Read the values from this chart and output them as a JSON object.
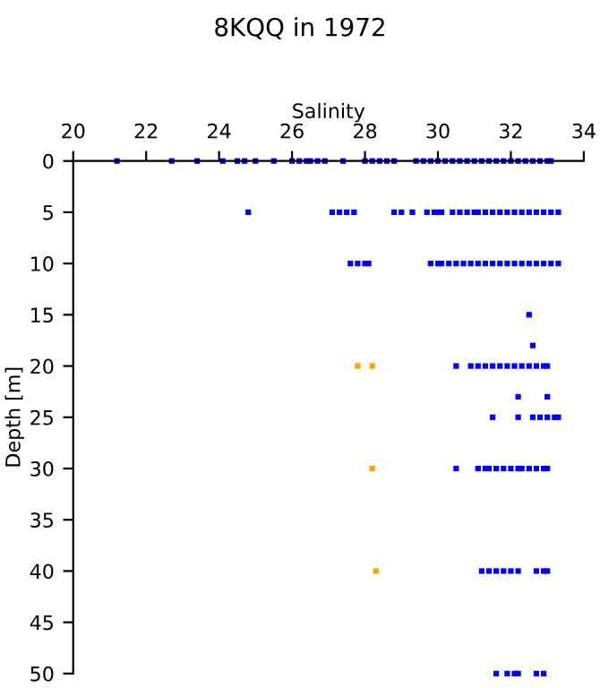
{
  "chart_data": {
    "type": "scatter",
    "title": "8KQQ in 1972",
    "xlabel": "Salinity",
    "ylabel": "Depth [m]",
    "xlim": [
      20,
      34
    ],
    "xticks": [
      20,
      22,
      24,
      26,
      28,
      30,
      32,
      34
    ],
    "ylim": [
      50,
      0
    ],
    "yticks": [
      0,
      5,
      10,
      15,
      20,
      25,
      30,
      35,
      40,
      45,
      50
    ],
    "grid": false,
    "marker": "square",
    "series": [
      {
        "color": "#0000ff",
        "x": [
          21.2,
          22.7,
          23.4,
          24.1,
          24.5,
          24.7,
          25.0,
          25.5,
          26.0,
          26.2,
          26.4,
          26.5,
          26.7,
          26.9,
          27.4,
          28.0,
          28.2,
          28.4,
          28.6,
          28.8,
          29.4,
          29.6,
          29.8,
          30.0,
          30.2,
          30.4,
          30.6,
          30.8,
          31.0,
          31.2,
          31.4,
          31.6,
          31.8,
          32.0,
          32.2,
          32.4,
          32.6,
          32.8,
          33.0,
          33.1
        ],
        "values": [
          0,
          0,
          0,
          0,
          0,
          0,
          0,
          0,
          0,
          0,
          0,
          0,
          0,
          0,
          0,
          0,
          0,
          0,
          0,
          0,
          0,
          0,
          0,
          0,
          0,
          0,
          0,
          0,
          0,
          0,
          0,
          0,
          0,
          0,
          0,
          0,
          0,
          0,
          0,
          0
        ]
      },
      {
        "color": "#0000ff",
        "x": [
          24.8,
          27.1,
          27.3,
          27.5,
          27.7,
          28.8,
          29.0,
          29.3,
          29.7,
          29.9,
          30.0,
          30.1,
          30.4,
          30.6,
          30.8,
          31.0,
          31.1,
          31.3,
          31.5,
          31.7,
          31.9,
          32.1,
          32.3,
          32.5,
          32.7,
          32.9,
          33.1,
          33.3
        ],
        "values": [
          5,
          5,
          5,
          5,
          5,
          5,
          5,
          5,
          5,
          5,
          5,
          5,
          5,
          5,
          5,
          5,
          5,
          5,
          5,
          5,
          5,
          5,
          5,
          5,
          5,
          5,
          5,
          5
        ]
      },
      {
        "color": "#0000ff",
        "x": [
          27.6,
          27.8,
          28.0,
          28.1,
          29.8,
          30.0,
          30.1,
          30.3,
          30.5,
          30.7,
          30.9,
          31.1,
          31.3,
          31.5,
          31.7,
          31.9,
          32.1,
          32.3,
          32.5,
          32.7,
          32.9,
          33.1,
          33.3
        ],
        "values": [
          10,
          10,
          10,
          10,
          10,
          10,
          10,
          10,
          10,
          10,
          10,
          10,
          10,
          10,
          10,
          10,
          10,
          10,
          10,
          10,
          10,
          10,
          10
        ]
      },
      {
        "color": "#0000ff",
        "x": [
          32.5,
          32.6,
          32.2,
          33.0
        ],
        "values": [
          15,
          18,
          23,
          23
        ]
      },
      {
        "color": "#0000ff",
        "x": [
          30.5,
          30.9,
          31.1,
          31.3,
          31.5,
          31.7,
          31.9,
          32.1,
          32.3,
          32.5,
          32.7,
          32.9,
          33.0
        ],
        "values": [
          20,
          20,
          20,
          20,
          20,
          20,
          20,
          20,
          20,
          20,
          20,
          20,
          20
        ]
      },
      {
        "color": "#0000ff",
        "x": [
          31.5,
          32.2,
          32.6,
          32.8,
          33.0,
          33.2,
          33.3
        ],
        "values": [
          25,
          25,
          25,
          25,
          25,
          25,
          25
        ]
      },
      {
        "color": "#0000ff",
        "x": [
          30.5,
          31.1,
          31.3,
          31.4,
          31.6,
          31.8,
          32.0,
          32.2,
          32.3,
          32.5,
          32.7,
          32.9,
          33.0
        ],
        "values": [
          30,
          30,
          30,
          30,
          30,
          30,
          30,
          30,
          30,
          30,
          30,
          30,
          30
        ]
      },
      {
        "color": "#0000ff",
        "x": [
          31.2,
          31.4,
          31.6,
          31.8,
          32.0,
          32.2,
          32.7,
          32.9,
          33.0
        ],
        "values": [
          40,
          40,
          40,
          40,
          40,
          40,
          40,
          40,
          40
        ]
      },
      {
        "color": "#0000ff",
        "x": [
          31.6,
          31.9,
          32.1,
          32.2,
          32.7,
          32.9
        ],
        "values": [
          50,
          50,
          50,
          50,
          50,
          50
        ]
      },
      {
        "color": "#ffa500",
        "x": [
          27.8,
          28.2,
          28.2,
          28.3
        ],
        "values": [
          20,
          20,
          30,
          40
        ]
      }
    ]
  }
}
